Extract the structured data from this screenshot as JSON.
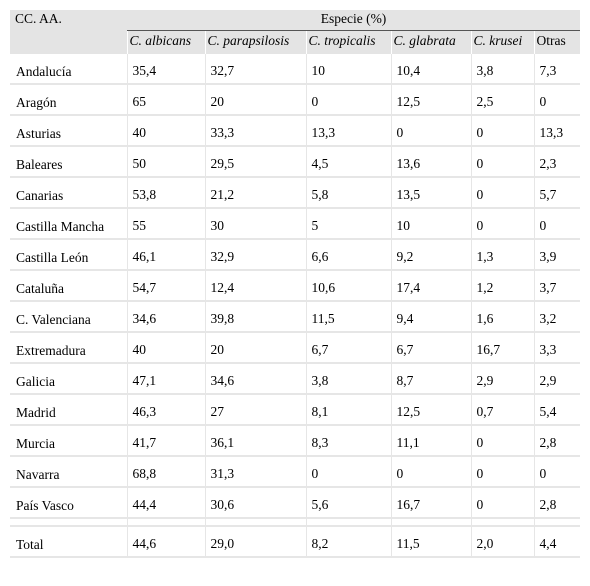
{
  "table": {
    "header": {
      "region": "CC. AA.",
      "group": "Especie (%)",
      "columns": [
        "C. albicans",
        "C. parapsilosis",
        "C. tropicalis",
        "C. glabrata",
        "C. krusei",
        "Otras"
      ]
    },
    "rows": [
      [
        "Andalucía",
        "35,4",
        "32,7",
        "10",
        "10,4",
        "3,8",
        "7,3"
      ],
      [
        "Aragón",
        "65",
        "20",
        "0",
        "12,5",
        "2,5",
        "0"
      ],
      [
        "Asturias",
        "40",
        "33,3",
        "13,3",
        "0",
        "0",
        "13,3"
      ],
      [
        "Baleares",
        "50",
        "29,5",
        "4,5",
        "13,6",
        "0",
        "2,3"
      ],
      [
        "Canarias",
        "53,8",
        "21,2",
        "5,8",
        "13,5",
        "0",
        "5,7"
      ],
      [
        "Castilla Mancha",
        "55",
        "30",
        "5",
        "10",
        "0",
        "0"
      ],
      [
        "Castilla León",
        "46,1",
        "32,9",
        "6,6",
        "9,2",
        "1,3",
        "3,9"
      ],
      [
        "Cataluña",
        "54,7",
        "12,4",
        "10,6",
        "17,4",
        "1,2",
        "3,7"
      ],
      [
        "C. Valenciana",
        "34,6",
        "39,8",
        "11,5",
        "9,4",
        "1,6",
        "3,2"
      ],
      [
        "Extremadura",
        "40",
        "20",
        "6,7",
        "6,7",
        "16,7",
        "3,3"
      ],
      [
        "Galicia",
        "47,1",
        "34,6",
        "3,8",
        "8,7",
        "2,9",
        "2,9"
      ],
      [
        "Madrid",
        "46,3",
        "27",
        "8,1",
        "12,5",
        "0,7",
        "5,4"
      ],
      [
        "Murcia",
        "41,7",
        "36,1",
        "8,3",
        "11,1",
        "0",
        "2,8"
      ],
      [
        "Navarra",
        "68,8",
        "31,3",
        "0",
        "0",
        "0",
        "0"
      ],
      [
        "País Vasco",
        "44,4",
        "30,6",
        "5,6",
        "16,7",
        "0",
        "2,8"
      ]
    ],
    "total": [
      "Total",
      "44,6",
      "29,0",
      "8,2",
      "11,5",
      "2,0",
      "4,4"
    ]
  }
}
